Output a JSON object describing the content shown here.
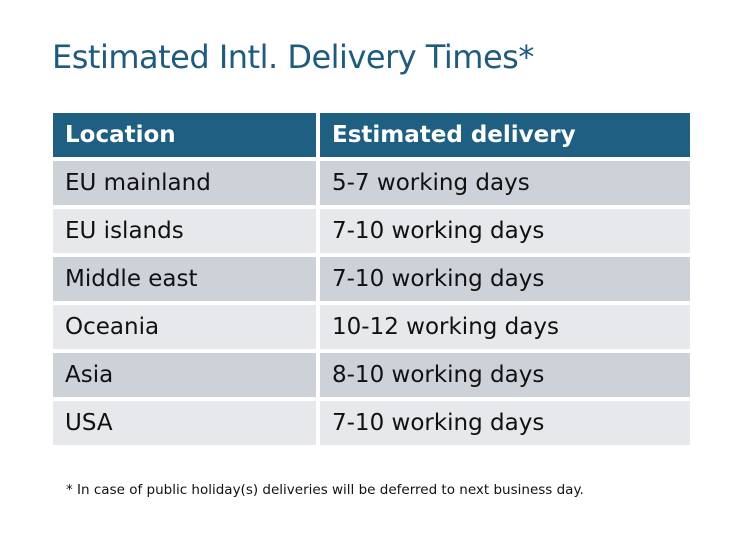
{
  "title": "Estimated Intl. Delivery Times*",
  "table": {
    "headers": [
      "Location",
      "Estimated delivery"
    ],
    "rows": [
      [
        "EU mainland",
        "5-7 working days"
      ],
      [
        "EU islands",
        "7-10 working days"
      ],
      [
        "Middle east",
        "7-10 working days"
      ],
      [
        "Oceania",
        "10-12 working days"
      ],
      [
        "Asia",
        "8-10 working days"
      ],
      [
        "USA",
        "7-10 working days"
      ]
    ]
  },
  "footnote": "* In case of public holiday(s) deliveries will be deferred to next business day.",
  "colors": {
    "title": "#1f5b7c",
    "header_bg": "#1f6082",
    "row_odd": "#cdd1d8",
    "row_even": "#e6e8eb"
  }
}
